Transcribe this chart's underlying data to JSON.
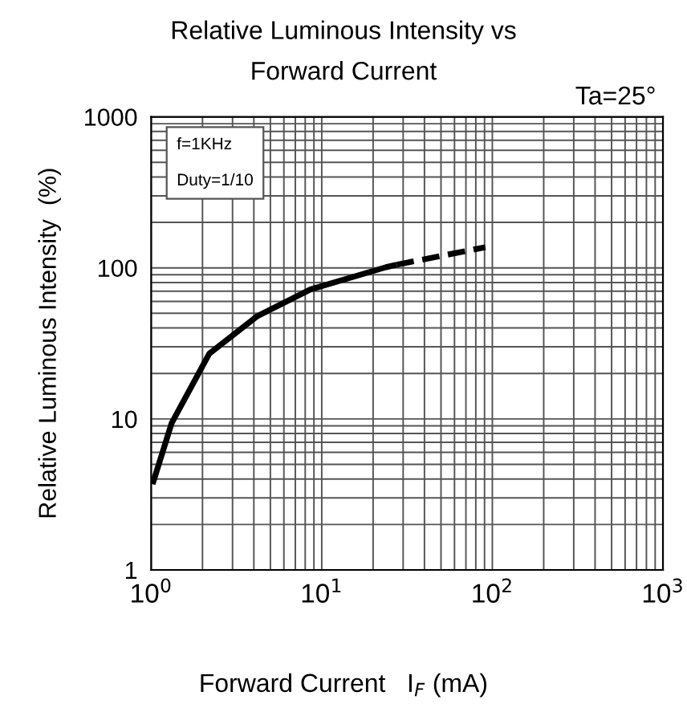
{
  "chart_data": {
    "type": "line",
    "title": "Relative Luminous Intensity vs\nForward Current",
    "xlabel": "Forward Current   I$_{F}$ (mA)",
    "ylabel": "Relative Luminous Intensity  (%)",
    "annotations": [
      "Ta=25°",
      "f=1KHz\n\nDuty=1/10"
    ],
    "log": "xy",
    "xlim": [
      1,
      1000
    ],
    "ylim": [
      1,
      1000
    ],
    "xticks": [
      {
        "value": 1,
        "label": "10$^{0}$"
      },
      {
        "value": 10,
        "label": "10$^{1}$"
      },
      {
        "value": 100,
        "label": "10$^{2}$"
      },
      {
        "value": 1000,
        "label": "10$^{3}$"
      }
    ],
    "yticks": [
      1,
      10,
      100,
      1000
    ],
    "grid": true,
    "series": [
      {
        "color": "#000000",
        "line_style": "solid",
        "x": [
          1.02,
          1.32,
          2.19,
          4.2,
          8.6,
          23.8,
          27.5
        ],
        "values": [
          3.7,
          9.4,
          27,
          48,
          72,
          101,
          105
        ]
      },
      {
        "color": "#000000",
        "line_style": "dashed",
        "x": [
          27.5,
          91
        ],
        "values": [
          105,
          137
        ]
      }
    ]
  }
}
